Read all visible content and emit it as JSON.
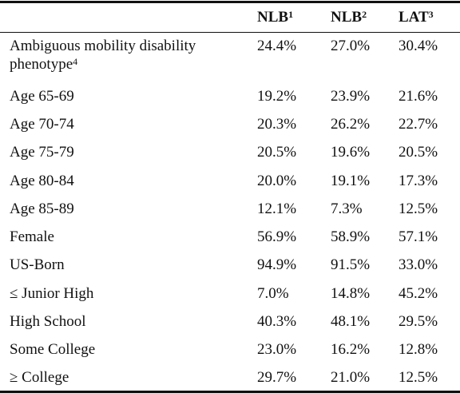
{
  "table": {
    "columns": [
      {
        "text": "NLB",
        "sup": "1"
      },
      {
        "text": "NLB",
        "sup": "2"
      },
      {
        "text": "LAT",
        "sup": "3"
      }
    ],
    "rows": [
      {
        "label": "Ambiguous mobility disability phenotype",
        "sup": "4",
        "cells": [
          "24.4%",
          "27.0%",
          "30.4%"
        ]
      },
      {
        "label": "Age 65-69",
        "cells": [
          "19.2%",
          "23.9%",
          "21.6%"
        ]
      },
      {
        "label": "Age 70-74",
        "cells": [
          "20.3%",
          "26.2%",
          "22.7%"
        ]
      },
      {
        "label": "Age 75-79",
        "cells": [
          "20.5%",
          "19.6%",
          "20.5%"
        ]
      },
      {
        "label": "Age 80-84",
        "cells": [
          "20.0%",
          "19.1%",
          "17.3%"
        ]
      },
      {
        "label": "Age 85-89",
        "cells": [
          "12.1%",
          "7.3%",
          "12.5%"
        ]
      },
      {
        "label": "Female",
        "cells": [
          "56.9%",
          "58.9%",
          "57.1%"
        ]
      },
      {
        "label": "US-Born",
        "cells": [
          "94.9%",
          "91.5%",
          "33.0%"
        ]
      },
      {
        "label": "≤ Junior High",
        "cells": [
          "7.0%",
          "14.8%",
          "45.2%"
        ]
      },
      {
        "label": "High School",
        "cells": [
          "40.3%",
          "48.1%",
          "29.5%"
        ]
      },
      {
        "label": "Some College",
        "cells": [
          "23.0%",
          "16.2%",
          "12.8%"
        ]
      },
      {
        "label": "≥ College",
        "cells": [
          "29.7%",
          "21.0%",
          "12.5%"
        ]
      }
    ]
  }
}
